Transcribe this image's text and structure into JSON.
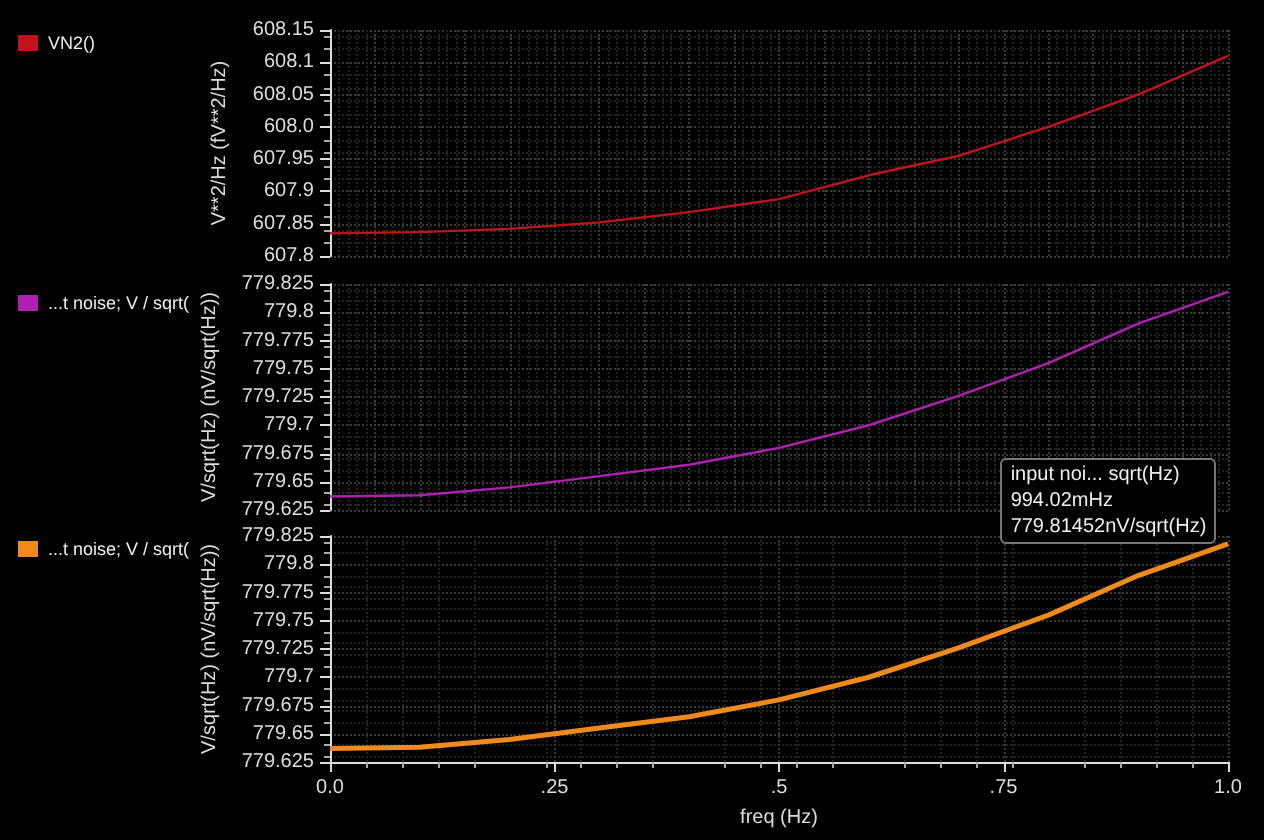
{
  "chart_data": [
    {
      "type": "line",
      "ylabel": "V**2/Hz (fV**2/Hz)",
      "legend": "left",
      "grid": true,
      "marker": "none",
      "tick_labels": "y",
      "x": [
        0,
        0.1,
        0.2,
        0.3,
        0.4,
        0.5,
        0.6,
        0.7,
        0.8,
        0.9,
        1.0
      ],
      "series": [
        {
          "name": "VN2()",
          "color": "#c0141a",
          "values": [
            607.835,
            607.837,
            607.842,
            607.852,
            607.868,
            607.888,
            607.925,
            607.955,
            608.0,
            608.05,
            608.11
          ]
        }
      ],
      "xlim": [
        0,
        1
      ],
      "ylim": [
        607.8,
        608.15
      ],
      "yticks": [
        607.8,
        607.85,
        607.9,
        607.95,
        {
          "value": 608.0,
          "label": "608.0"
        },
        608.05,
        608.1,
        608.15
      ]
    },
    {
      "type": "line",
      "ylabel": "V/sqrt(Hz) (nV/sqrt(Hz))",
      "legend": "left",
      "grid": true,
      "marker": "none",
      "tick_labels": "y",
      "x": [
        0,
        0.1,
        0.2,
        0.3,
        0.4,
        0.5,
        0.6,
        0.7,
        0.8,
        0.9,
        1.0
      ],
      "series": [
        {
          "name": "...t noise; V / sqrt(",
          "color": "#b020b0",
          "values": [
            779.637,
            779.638,
            779.645,
            779.655,
            779.665,
            779.68,
            779.7,
            779.726,
            779.755,
            779.79,
            779.818
          ]
        }
      ],
      "xlim": [
        0,
        1
      ],
      "ylim": [
        779.625,
        779.825
      ],
      "yticks": [
        779.625,
        779.65,
        779.675,
        779.7,
        779.725,
        779.75,
        779.775,
        779.8,
        779.825
      ]
    },
    {
      "type": "line",
      "xlabel": "freq (Hz)",
      "ylabel": "V/sqrt(Hz) (nV/sqrt(Hz))",
      "legend": "left",
      "grid": true,
      "marker": "none",
      "x": [
        0,
        0.1,
        0.2,
        0.3,
        0.4,
        0.5,
        0.6,
        0.7,
        0.8,
        0.9,
        1.0
      ],
      "series": [
        {
          "name": "...t noise; V / sqrt(",
          "color": "#f08a1c",
          "values": [
            779.637,
            779.638,
            779.645,
            779.655,
            779.665,
            779.68,
            779.7,
            779.726,
            779.755,
            779.79,
            779.818
          ]
        }
      ],
      "xlim": [
        0,
        1
      ],
      "ylim": [
        779.625,
        779.825
      ],
      "yticks": [
        779.625,
        779.65,
        779.675,
        779.7,
        779.725,
        779.75,
        779.775,
        779.8,
        779.825
      ],
      "xticks": [
        {
          "value": 0,
          "label": "0.0"
        },
        {
          "value": 0.25,
          "label": ".25"
        },
        {
          "value": 0.5,
          "label": ".5"
        },
        {
          "value": 0.75,
          "label": ".75"
        },
        {
          "value": 1.0,
          "label": "1.0"
        }
      ],
      "annotations": [
        {
          "text": "input noi... sqrt(Hz)\n994.02mHz\n779.81452nV/sqrt(Hz)",
          "x": 0.99402,
          "y": 779.81452
        }
      ]
    }
  ]
}
